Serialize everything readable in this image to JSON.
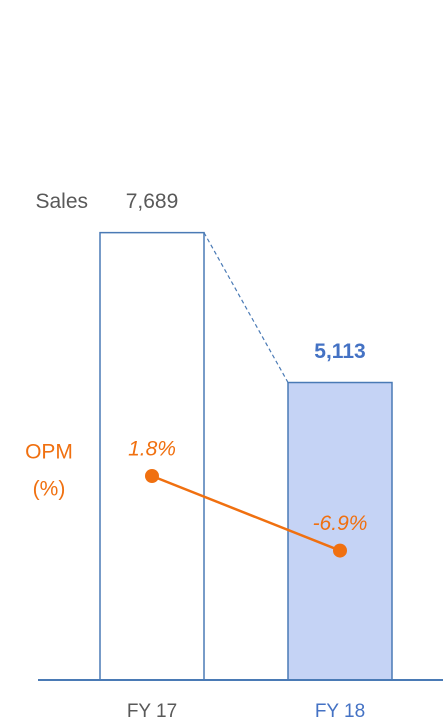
{
  "chart_data": {
    "type": "bar",
    "categories": [
      "FY 17",
      "FY 18"
    ],
    "category_colors": [
      "#595959",
      "#4472c4"
    ],
    "series": [
      {
        "name": "Sales",
        "type": "bar",
        "values": [
          7689,
          5113
        ],
        "value_labels": [
          "7,689",
          "5,113"
        ],
        "colors": [
          "#ffffff",
          "#c5d3f5"
        ],
        "edge_color": "#4a7ab5"
      },
      {
        "name": "OPM",
        "unit": "(%)",
        "type": "line",
        "axis": "y2",
        "values": [
          1.8,
          -6.9
        ],
        "value_labels": [
          "1.8%",
          "-6.9%"
        ],
        "color": "#f07010"
      }
    ],
    "ylim": [
      0,
      8250
    ],
    "y2lim": [
      -22,
      34
    ]
  }
}
